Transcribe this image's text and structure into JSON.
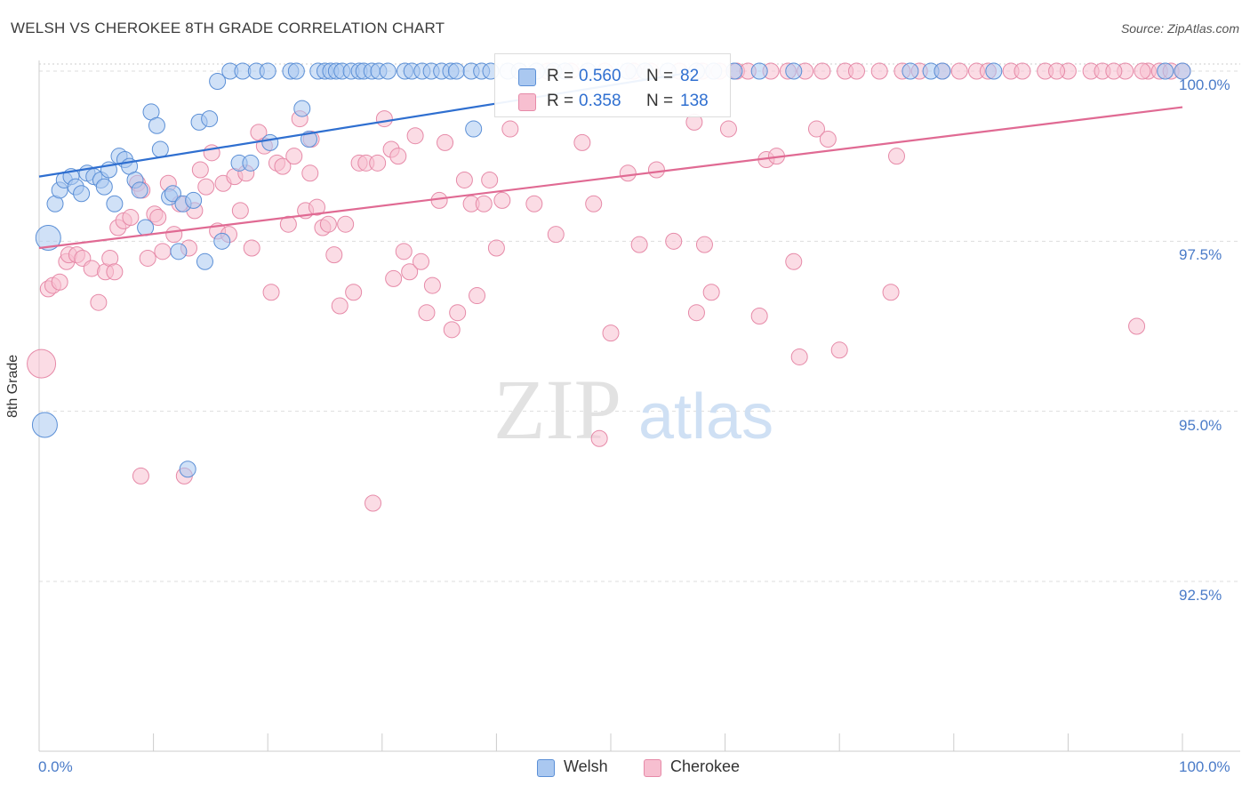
{
  "header": {
    "title": "WELSH VS CHEROKEE 8TH GRADE CORRELATION CHART",
    "source": "Source: ZipAtlas.com"
  },
  "watermark": {
    "zip": "ZIP",
    "atlas": "atlas"
  },
  "legend": {
    "welsh": {
      "r_label": "R =",
      "r_value": "0.560",
      "n_label": "N =",
      "n_value": "82"
    },
    "cherokee": {
      "r_label": "R =",
      "r_value": "0.358",
      "n_label": "N =",
      "n_value": "138"
    }
  },
  "bottom_legend": {
    "welsh": "Welsh",
    "cherokee": "Cherokee"
  },
  "colors": {
    "welsh_fill": "#aac8f0",
    "welsh_stroke": "#5b8fd6",
    "welsh_line": "#2f6fd0",
    "cherokee_fill": "#f7bfd0",
    "cherokee_stroke": "#e68aa8",
    "cherokee_line": "#e06a93",
    "axis_label": "#4a7bc8",
    "grid": "#dddddd"
  },
  "chart_data": {
    "type": "scatter",
    "title": "WELSH VS CHEROKEE 8TH GRADE CORRELATION CHART",
    "xlabel": "",
    "ylabel": "8th Grade",
    "xlim": [
      0,
      100
    ],
    "ylim": [
      90.3,
      100.4
    ],
    "x_tick_labels": [
      "0.0%",
      "100.0%"
    ],
    "y_ticks": [
      92.5,
      95.0,
      97.5,
      100.0
    ],
    "y_tick_labels": [
      "92.5%",
      "95.0%",
      "97.5%",
      "100.0%"
    ],
    "grid": "horizontal dashed",
    "legend_position": "top-center",
    "series": [
      {
        "name": "Welsh",
        "trendline": {
          "x": [
            0,
            57
          ],
          "y": [
            98.45,
            99.98
          ]
        },
        "points": [
          [
            0.8,
            97.55,
            14
          ],
          [
            0.5,
            94.8,
            14
          ],
          [
            1.4,
            98.05,
            9
          ],
          [
            1.8,
            98.25,
            9
          ],
          [
            2.2,
            98.4,
            9
          ],
          [
            2.8,
            98.45,
            9
          ],
          [
            3.2,
            98.3,
            9
          ],
          [
            3.7,
            98.2,
            9
          ],
          [
            4.2,
            98.5,
            9
          ],
          [
            4.8,
            98.45,
            9
          ],
          [
            5.4,
            98.4,
            9
          ],
          [
            5.7,
            98.3,
            9
          ],
          [
            6.1,
            98.55,
            9
          ],
          [
            6.6,
            98.05,
            9
          ],
          [
            7.0,
            98.75,
            9
          ],
          [
            7.5,
            98.7,
            9
          ],
          [
            7.9,
            98.6,
            9
          ],
          [
            8.4,
            98.4,
            9
          ],
          [
            8.8,
            98.25,
            9
          ],
          [
            9.3,
            97.7,
            9
          ],
          [
            9.8,
            99.4,
            9
          ],
          [
            10.3,
            99.2,
            9
          ],
          [
            10.6,
            98.85,
            9
          ],
          [
            11.4,
            98.15,
            9
          ],
          [
            11.7,
            98.2,
            9
          ],
          [
            12.2,
            97.35,
            9
          ],
          [
            12.6,
            98.05,
            9
          ],
          [
            13.0,
            94.15,
            9
          ],
          [
            13.5,
            98.1,
            9
          ],
          [
            14.0,
            99.25,
            9
          ],
          [
            14.5,
            97.2,
            9
          ],
          [
            14.9,
            99.3,
            9
          ],
          [
            15.6,
            99.85,
            9
          ],
          [
            16.0,
            97.5,
            9
          ],
          [
            16.7,
            100.0,
            9
          ],
          [
            17.5,
            98.65,
            9
          ],
          [
            17.8,
            100.0,
            9
          ],
          [
            18.5,
            98.65,
            9
          ],
          [
            19.0,
            100.0,
            9
          ],
          [
            20.0,
            100.0,
            9
          ],
          [
            20.2,
            98.95,
            9
          ],
          [
            22.0,
            100.0,
            9
          ],
          [
            22.5,
            100.0,
            9
          ],
          [
            23.0,
            99.45,
            9
          ],
          [
            23.6,
            99.0,
            9
          ],
          [
            24.4,
            100.0,
            9
          ],
          [
            25.0,
            100.0,
            9
          ],
          [
            25.5,
            100.0,
            9
          ],
          [
            26.0,
            100.0,
            9
          ],
          [
            26.5,
            100.0,
            9
          ],
          [
            27.3,
            100.0,
            9
          ],
          [
            28.0,
            100.0,
            9
          ],
          [
            28.4,
            100.0,
            9
          ],
          [
            29.1,
            100.0,
            9
          ],
          [
            29.7,
            100.0,
            9
          ],
          [
            30.5,
            100.0,
            9
          ],
          [
            32.0,
            100.0,
            9
          ],
          [
            32.6,
            100.0,
            9
          ],
          [
            33.5,
            100.0,
            9
          ],
          [
            34.3,
            100.0,
            9
          ],
          [
            35.2,
            100.0,
            9
          ],
          [
            36.0,
            100.0,
            9
          ],
          [
            36.5,
            100.0,
            9
          ],
          [
            37.8,
            100.0,
            9
          ],
          [
            38.7,
            100.0,
            9
          ],
          [
            39.5,
            100.0,
            9
          ],
          [
            41.0,
            100.0,
            9
          ],
          [
            42.0,
            100.0,
            9
          ],
          [
            43.5,
            100.0,
            9
          ],
          [
            45.0,
            100.0,
            9
          ],
          [
            46.0,
            100.0,
            9
          ],
          [
            48.0,
            100.0,
            9
          ],
          [
            51.5,
            100.0,
            9
          ],
          [
            53.0,
            100.0,
            9
          ],
          [
            55.0,
            100.0,
            9
          ],
          [
            57.5,
            100.0,
            9
          ],
          [
            59.0,
            100.0,
            9
          ],
          [
            60.8,
            100.0,
            9
          ],
          [
            63.0,
            100.0,
            9
          ],
          [
            66.0,
            100.0,
            9
          ],
          [
            76.2,
            100.0,
            9
          ],
          [
            78.0,
            100.0,
            9
          ],
          [
            79.0,
            100.0,
            9
          ],
          [
            83.5,
            100.0,
            9
          ],
          [
            98.5,
            100.0,
            9
          ],
          [
            100.0,
            100.0,
            9
          ],
          [
            38.0,
            99.15,
            9
          ]
        ]
      },
      {
        "name": "Cherokee",
        "trendline": {
          "x": [
            0,
            100
          ],
          "y": [
            97.4,
            99.47
          ]
        },
        "points": [
          [
            0.2,
            95.7,
            16
          ],
          [
            0.8,
            96.8,
            9
          ],
          [
            1.2,
            96.85,
            9
          ],
          [
            1.8,
            96.9,
            9
          ],
          [
            2.4,
            97.2,
            9
          ],
          [
            2.6,
            97.3,
            9
          ],
          [
            3.3,
            97.3,
            9
          ],
          [
            3.8,
            97.25,
            9
          ],
          [
            4.6,
            97.1,
            9
          ],
          [
            5.2,
            96.6,
            9
          ],
          [
            5.8,
            97.05,
            9
          ],
          [
            6.2,
            97.25,
            9
          ],
          [
            6.6,
            97.05,
            9
          ],
          [
            6.9,
            97.7,
            9
          ],
          [
            7.4,
            97.8,
            9
          ],
          [
            8.0,
            97.85,
            9
          ],
          [
            8.6,
            98.35,
            9
          ],
          [
            9.0,
            98.25,
            9
          ],
          [
            9.5,
            97.25,
            9
          ],
          [
            10.1,
            97.9,
            9
          ],
          [
            10.4,
            97.85,
            9
          ],
          [
            10.8,
            97.35,
            9
          ],
          [
            11.3,
            98.35,
            9
          ],
          [
            11.8,
            97.6,
            9
          ],
          [
            12.3,
            98.05,
            9
          ],
          [
            12.7,
            94.05,
            9
          ],
          [
            13.1,
            97.4,
            9
          ],
          [
            13.6,
            97.95,
            9
          ],
          [
            14.1,
            98.55,
            9
          ],
          [
            14.6,
            98.3,
            9
          ],
          [
            15.1,
            98.8,
            9
          ],
          [
            15.6,
            97.65,
            9
          ],
          [
            16.1,
            98.35,
            9
          ],
          [
            16.6,
            97.6,
            9
          ],
          [
            17.1,
            98.45,
            9
          ],
          [
            17.6,
            97.95,
            9
          ],
          [
            18.1,
            98.5,
            9
          ],
          [
            18.6,
            97.4,
            9
          ],
          [
            19.2,
            99.1,
            9
          ],
          [
            19.7,
            98.9,
            9
          ],
          [
            20.3,
            96.75,
            9
          ],
          [
            20.8,
            98.65,
            9
          ],
          [
            21.3,
            98.6,
            9
          ],
          [
            21.8,
            97.75,
            9
          ],
          [
            22.3,
            98.75,
            9
          ],
          [
            22.8,
            99.3,
            9
          ],
          [
            23.3,
            97.95,
            9
          ],
          [
            23.8,
            99.0,
            9
          ],
          [
            24.3,
            98.0,
            9
          ],
          [
            24.8,
            97.7,
            9
          ],
          [
            25.3,
            97.75,
            9
          ],
          [
            25.8,
            97.3,
            9
          ],
          [
            26.3,
            96.55,
            9
          ],
          [
            26.8,
            97.75,
            9
          ],
          [
            27.5,
            96.75,
            9
          ],
          [
            28.0,
            98.65,
            9
          ],
          [
            28.6,
            98.65,
            9
          ],
          [
            29.2,
            93.65,
            9
          ],
          [
            29.6,
            98.65,
            9
          ],
          [
            30.2,
            99.3,
            9
          ],
          [
            30.8,
            98.85,
            9
          ],
          [
            31.4,
            98.75,
            9
          ],
          [
            31.9,
            97.35,
            9
          ],
          [
            32.4,
            97.05,
            9
          ],
          [
            32.9,
            99.05,
            9
          ],
          [
            33.4,
            97.2,
            9
          ],
          [
            33.9,
            96.45,
            9
          ],
          [
            34.4,
            96.85,
            9
          ],
          [
            35.0,
            98.1,
            9
          ],
          [
            35.5,
            98.95,
            9
          ],
          [
            36.1,
            96.2,
            9
          ],
          [
            36.6,
            96.45,
            9
          ],
          [
            37.2,
            98.4,
            9
          ],
          [
            37.8,
            98.05,
            9
          ],
          [
            38.3,
            96.7,
            9
          ],
          [
            38.9,
            98.05,
            9
          ],
          [
            39.4,
            98.4,
            9
          ],
          [
            40.0,
            97.4,
            9
          ],
          [
            40.5,
            98.1,
            9
          ],
          [
            41.2,
            99.15,
            9
          ],
          [
            43.3,
            98.05,
            9
          ],
          [
            45.2,
            97.6,
            9
          ],
          [
            47.5,
            98.95,
            9
          ],
          [
            48.5,
            98.05,
            9
          ],
          [
            49.0,
            94.6,
            9
          ],
          [
            50.0,
            96.15,
            9
          ],
          [
            51.5,
            98.5,
            9
          ],
          [
            52.5,
            97.45,
            9
          ],
          [
            54.0,
            98.55,
            9
          ],
          [
            55.5,
            97.5,
            9
          ],
          [
            57.3,
            99.25,
            9
          ],
          [
            57.5,
            96.45,
            9
          ],
          [
            58.2,
            97.45,
            9
          ],
          [
            58.8,
            96.75,
            9
          ],
          [
            60.3,
            99.15,
            9
          ],
          [
            63.0,
            96.4,
            9
          ],
          [
            63.6,
            98.7,
            9
          ],
          [
            64.5,
            98.75,
            9
          ],
          [
            66.0,
            97.2,
            9
          ],
          [
            66.5,
            95.8,
            9
          ],
          [
            68.0,
            99.15,
            9
          ],
          [
            69.0,
            99.0,
            9
          ],
          [
            70.0,
            95.9,
            9
          ],
          [
            74.5,
            96.75,
            9
          ],
          [
            75.0,
            98.75,
            9
          ],
          [
            77.0,
            100.0,
            9
          ],
          [
            80.5,
            100.0,
            9
          ],
          [
            82.0,
            100.0,
            9
          ],
          [
            85.0,
            100.0,
            9
          ],
          [
            88.0,
            100.0,
            9
          ],
          [
            90.0,
            100.0,
            9
          ],
          [
            92.0,
            100.0,
            9
          ],
          [
            95.0,
            100.0,
            9
          ],
          [
            97.0,
            100.0,
            9
          ],
          [
            98.0,
            100.0,
            9
          ],
          [
            96.0,
            96.25,
            9
          ],
          [
            44.5,
            100.0,
            9
          ],
          [
            46.5,
            100.0,
            9
          ],
          [
            49.5,
            100.0,
            9
          ],
          [
            52.0,
            100.0,
            9
          ],
          [
            53.5,
            100.0,
            9
          ],
          [
            56.0,
            100.0,
            9
          ],
          [
            58.0,
            100.0,
            9
          ],
          [
            59.5,
            100.0,
            9
          ],
          [
            61.0,
            100.0,
            9
          ],
          [
            62.0,
            100.0,
            9
          ],
          [
            64.0,
            100.0,
            9
          ],
          [
            65.5,
            100.0,
            9
          ],
          [
            67.0,
            100.0,
            9
          ],
          [
            68.5,
            100.0,
            9
          ],
          [
            70.5,
            100.0,
            9
          ],
          [
            71.5,
            100.0,
            9
          ],
          [
            73.5,
            100.0,
            9
          ],
          [
            75.5,
            100.0,
            9
          ],
          [
            79.0,
            100.0,
            9
          ],
          [
            83.0,
            100.0,
            9
          ],
          [
            86.0,
            100.0,
            9
          ],
          [
            89.0,
            100.0,
            9
          ],
          [
            93.0,
            100.0,
            9
          ],
          [
            94.0,
            100.0,
            9
          ],
          [
            96.5,
            100.0,
            9
          ],
          [
            99.0,
            100.0,
            9
          ],
          [
            100.0,
            100.0,
            9
          ],
          [
            8.9,
            94.05,
            9
          ],
          [
            23.7,
            98.5,
            9
          ],
          [
            31.0,
            96.95,
            9
          ]
        ]
      }
    ]
  }
}
